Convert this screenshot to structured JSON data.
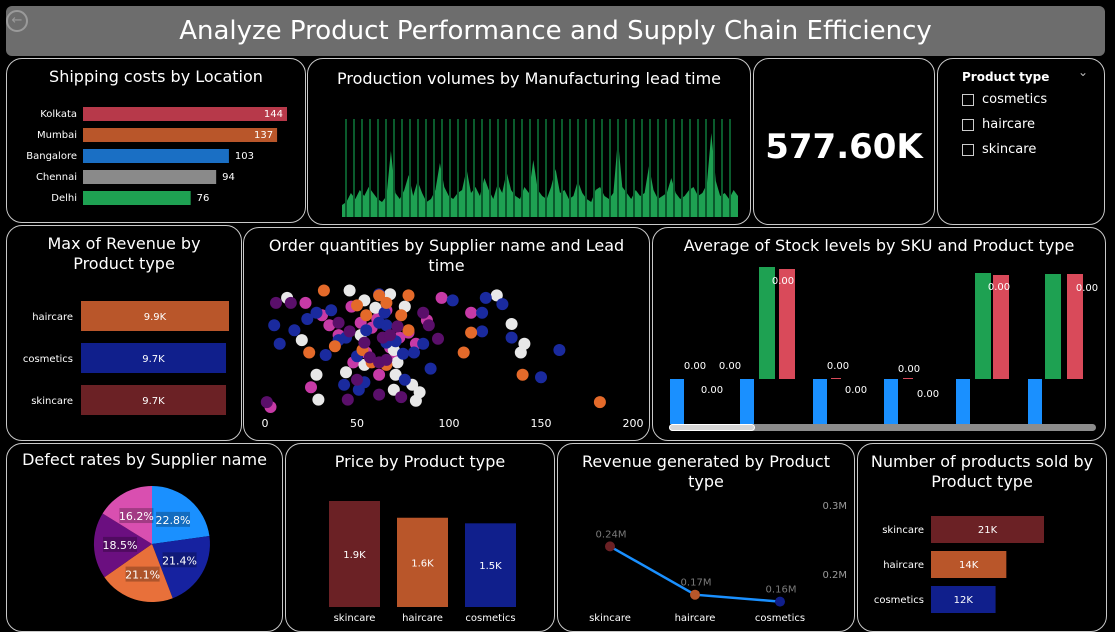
{
  "header": {
    "title": "Analyze Product Performance and Supply Chain Efficiency"
  },
  "kpi": {
    "value": "577.60K"
  },
  "slicer": {
    "title": "Product type",
    "options": [
      "cosmetics",
      "haircare",
      "skincare"
    ]
  },
  "colors": {
    "background": "#000000",
    "header": "#6d6d6d",
    "skincare": "#6b2125",
    "haircare": "#b9562a",
    "cosmetics": "#101f8c"
  },
  "chart_data": [
    {
      "id": "shipping",
      "type": "bar",
      "orientation": "horizontal",
      "title": "Shipping costs by Location",
      "categories": [
        "Kolkata",
        "Mumbai",
        "Bangalore",
        "Chennai",
        "Delhi"
      ],
      "values": [
        144,
        137,
        103,
        94,
        76
      ],
      "value_labels": [
        "144",
        "137",
        "103",
        "94",
        "76"
      ],
      "colors": [
        "#b7394a",
        "#b9562a",
        "#1a6fc4",
        "#8a8a8a",
        "#1ea152"
      ]
    },
    {
      "id": "production",
      "type": "area",
      "title": "Production volumes by Manufacturing lead time",
      "values": [
        4,
        5,
        8,
        6,
        9,
        7,
        10,
        8,
        6,
        5,
        7,
        22,
        8,
        6,
        9,
        14,
        7,
        12,
        8,
        5,
        6,
        9,
        18,
        10,
        7,
        6,
        8,
        9,
        16,
        8,
        10,
        7,
        13,
        9,
        6,
        11,
        8,
        15,
        9,
        7,
        6,
        10,
        8,
        19,
        9,
        7,
        6,
        10,
        16,
        8,
        9,
        6,
        7,
        12,
        8,
        6,
        5,
        9,
        10,
        7,
        6,
        8,
        26,
        10,
        8,
        6,
        9,
        7,
        8,
        17,
        9,
        6,
        7,
        8,
        13,
        8,
        6,
        7,
        9,
        10,
        7,
        8,
        11,
        28,
        12,
        7,
        8,
        6,
        9,
        7
      ],
      "color": "#1ea152"
    },
    {
      "id": "max-revenue",
      "type": "bar",
      "orientation": "horizontal",
      "title": "Max of Revenue by Product type",
      "categories": [
        "haircare",
        "cosmetics",
        "skincare"
      ],
      "values": [
        9.9,
        9.7,
        9.7
      ],
      "value_labels": [
        "9.9K",
        "9.7K",
        "9.7K"
      ],
      "colors": [
        "#b9562a",
        "#101f8c",
        "#6b2125"
      ]
    },
    {
      "id": "order-quantities",
      "type": "scatter",
      "title": "Order quantities by Supplier name and Lead time",
      "xticks": [
        0,
        50,
        100,
        150,
        200
      ],
      "xlim": [
        0,
        200
      ],
      "ylim": [
        0,
        100
      ],
      "series": [
        {
          "color": "#c73aa6",
          "points": [
            [
              3,
              4
            ],
            [
              22,
              88
            ],
            [
              35,
              70
            ],
            [
              40,
              62
            ],
            [
              47,
              85
            ],
            [
              52,
              72
            ],
            [
              58,
              68
            ],
            [
              61,
              75
            ],
            [
              66,
              82
            ],
            [
              73,
              60
            ],
            [
              78,
              64
            ],
            [
              82,
              55
            ],
            [
              88,
              74
            ],
            [
              48,
              40
            ],
            [
              62,
              30
            ],
            [
              96,
              92
            ],
            [
              112,
              80
            ],
            [
              68,
              52
            ],
            [
              55,
              48
            ],
            [
              31,
              78
            ],
            [
              25,
              20
            ],
            [
              71,
              44
            ]
          ]
        },
        {
          "color": "#e8e8e8",
          "points": [
            [
              12,
              92
            ],
            [
              20,
              58
            ],
            [
              28,
              30
            ],
            [
              46,
              98
            ],
            [
              52,
              62
            ],
            [
              54,
              90
            ],
            [
              60,
              84
            ],
            [
              68,
              95
            ],
            [
              76,
              85
            ],
            [
              70,
              50
            ],
            [
              72,
              40
            ],
            [
              44,
              32
            ],
            [
              70,
              18
            ],
            [
              71,
              30
            ],
            [
              80,
              22
            ],
            [
              82,
              9
            ],
            [
              126,
              94
            ],
            [
              134,
              71
            ],
            [
              141,
              55
            ],
            [
              139,
              48
            ],
            [
              54,
              38
            ],
            [
              29,
              10
            ],
            [
              84,
              16
            ]
          ]
        },
        {
          "color": "#1a2a9e",
          "points": [
            [
              5,
              70
            ],
            [
              8,
              55
            ],
            [
              16,
              66
            ],
            [
              23,
              75
            ],
            [
              28,
              80
            ],
            [
              36,
              82
            ],
            [
              40,
              58
            ],
            [
              44,
              60
            ],
            [
              50,
              45
            ],
            [
              55,
              66
            ],
            [
              62,
              72
            ],
            [
              66,
              70
            ],
            [
              66,
              56
            ],
            [
              71,
              57
            ],
            [
              75,
              47
            ],
            [
              86,
              55
            ],
            [
              90,
              35
            ],
            [
              102,
              90
            ],
            [
              118,
              80
            ],
            [
              120,
              92
            ],
            [
              118,
              65
            ],
            [
              129,
              87
            ],
            [
              134,
              60
            ],
            [
              150,
              28
            ],
            [
              160,
              50
            ],
            [
              33,
              46
            ],
            [
              54,
              24
            ],
            [
              51,
              18
            ],
            [
              43,
              22
            ],
            [
              76,
              26
            ],
            [
              81,
              48
            ],
            [
              62,
              95
            ],
            [
              65,
              80
            ]
          ]
        },
        {
          "color": "#e46a2a",
          "points": [
            [
              32,
              98
            ],
            [
              50,
              86
            ],
            [
              55,
              78
            ],
            [
              62,
              94
            ],
            [
              66,
              88
            ],
            [
              78,
              66
            ],
            [
              74,
              78
            ],
            [
              78,
              94
            ],
            [
              53,
              50
            ],
            [
              24,
              48
            ],
            [
              58,
              40
            ],
            [
              66,
              38
            ],
            [
              112,
              64
            ],
            [
              108,
              48
            ],
            [
              182,
              8
            ],
            [
              140,
              30
            ],
            [
              38,
              53
            ]
          ]
        },
        {
          "color": "#5a0f6a",
          "points": [
            [
              1,
              8
            ],
            [
              6,
              88
            ],
            [
              14,
              88
            ],
            [
              40,
              72
            ],
            [
              46,
              65
            ],
            [
              54,
              56
            ],
            [
              57,
              44
            ],
            [
              62,
              40
            ],
            [
              66,
              42
            ],
            [
              64,
              60
            ],
            [
              68,
              62
            ],
            [
              72,
              69
            ],
            [
              86,
              80
            ],
            [
              89,
              70
            ],
            [
              94,
              59
            ],
            [
              74,
              12
            ],
            [
              62,
              14
            ],
            [
              50,
              26
            ],
            [
              45,
              10
            ]
          ]
        }
      ]
    },
    {
      "id": "stock-levels",
      "type": "bar",
      "title": "Average of Stock levels by SKU and Product type",
      "bars": [
        {
          "color": "#1a90ff",
          "value": -45,
          "label": "0.00"
        },
        {
          "color": "#1a90ff",
          "value": -45,
          "label": "0.00"
        },
        {
          "color": "#1ea152",
          "value": 112,
          "label": "0.00"
        },
        {
          "color": "#d94a5a",
          "value": 110,
          "label": ""
        },
        {
          "color": "#1a90ff",
          "value": -45,
          "label": "0.00"
        },
        {
          "color": "#d94a5a",
          "value": 1,
          "label": "0.00"
        },
        {
          "color": "#1a90ff",
          "value": -45,
          "label": "0.00"
        },
        {
          "color": "#d94a5a",
          "value": 1,
          "label": "0.00"
        },
        {
          "color": "#1a90ff",
          "value": -45,
          "label": ""
        },
        {
          "color": "#1ea152",
          "value": 106,
          "label": "0.00"
        },
        {
          "color": "#d94a5a",
          "value": 104,
          "label": ""
        },
        {
          "color": "#1a90ff",
          "value": -45,
          "label": ""
        },
        {
          "color": "#1ea152",
          "value": 105,
          "label": "0.00"
        },
        {
          "color": "#d94a5a",
          "value": 105,
          "label": ""
        }
      ]
    },
    {
      "id": "defect-rates",
      "type": "pie",
      "title": "Defect rates by Supplier name",
      "slices": [
        {
          "label": "22.8%",
          "value": 22.8,
          "color": "#1a90ff"
        },
        {
          "label": "21.4%",
          "value": 21.4,
          "color": "#1622a0"
        },
        {
          "label": "21.1%",
          "value": 21.1,
          "color": "#e8703a"
        },
        {
          "label": "18.5%",
          "value": 18.5,
          "color": "#6b0f80"
        },
        {
          "label": "16.2%",
          "value": 16.2,
          "color": "#d94fb0"
        }
      ]
    },
    {
      "id": "price",
      "type": "bar",
      "title": "Price by Product type",
      "categories": [
        "skincare",
        "haircare",
        "cosmetics"
      ],
      "values": [
        1.9,
        1.6,
        1.5
      ],
      "value_labels": [
        "1.9K",
        "1.6K",
        "1.5K"
      ],
      "colors": [
        "#6b2125",
        "#b9562a",
        "#101f8c"
      ]
    },
    {
      "id": "revenue",
      "type": "line",
      "title": "Revenue generated by Product type",
      "categories": [
        "skincare",
        "haircare",
        "cosmetics"
      ],
      "values": [
        0.24,
        0.17,
        0.16
      ],
      "value_labels": [
        "0.24M",
        "0.17M",
        "0.16M"
      ],
      "point_colors": [
        "#6b2125",
        "#b9562a",
        "#101f8c"
      ],
      "line_color": "#1a90ff",
      "yticks": [
        {
          "value": 0.3,
          "label": "0.3M"
        },
        {
          "value": 0.2,
          "label": "0.2M"
        }
      ]
    },
    {
      "id": "products-sold",
      "type": "bar",
      "orientation": "horizontal",
      "title": "Number of products sold by Product type",
      "categories": [
        "skincare",
        "haircare",
        "cosmetics"
      ],
      "values": [
        21,
        14,
        12
      ],
      "value_labels": [
        "21K",
        "14K",
        "12K"
      ],
      "colors": [
        "#6b2125",
        "#b9562a",
        "#101f8c"
      ]
    }
  ]
}
